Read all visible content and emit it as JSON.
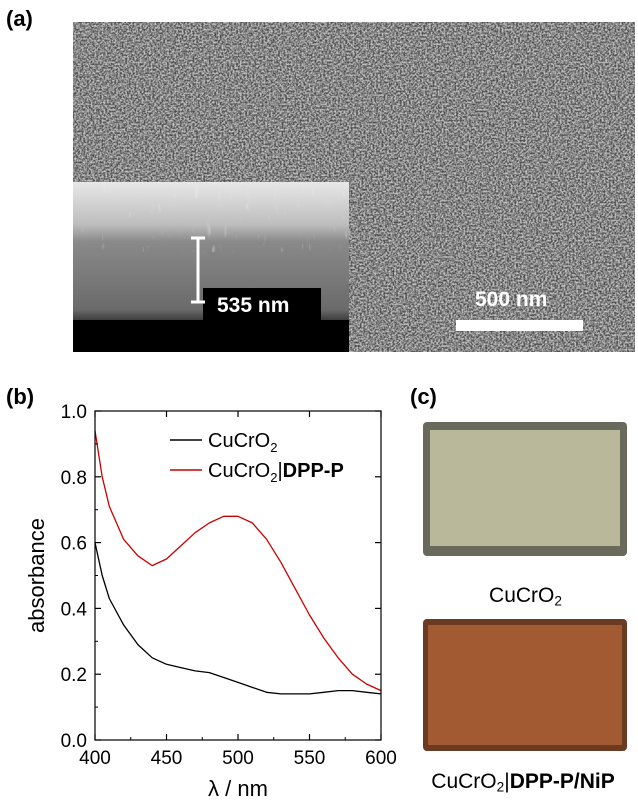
{
  "panels": {
    "a": "(a)",
    "b": "(b)",
    "c": "(c)"
  },
  "sem": {
    "scale_bar_label": "500 nm",
    "thickness_label": "535 nm"
  },
  "photos": [
    {
      "caption_main": "CuCrO",
      "caption_sub": "2",
      "caption_bold": "",
      "color": "#b9b89a"
    },
    {
      "caption_main": "CuCrO",
      "caption_sub": "2",
      "caption_sep": "|",
      "caption_bold": "DPP-P/NiP",
      "color": "#a25a32"
    }
  ],
  "chart_data": {
    "type": "line",
    "xlabel": "λ / nm",
    "ylabel": "absorbance",
    "xlim": [
      400,
      600
    ],
    "ylim": [
      0.0,
      1.0
    ],
    "xticks": [
      "400",
      "450",
      "500",
      "550",
      "600"
    ],
    "yticks": [
      "0.0",
      "0.2",
      "0.4",
      "0.6",
      "0.8",
      "1.0"
    ],
    "legend_position": "top-right",
    "series": [
      {
        "name": "CuCrO2",
        "legend_main": "CuCrO",
        "legend_sub": "2",
        "legend_sep": "",
        "legend_bold": "",
        "color": "#000000",
        "x": [
          400,
          405,
          410,
          420,
          430,
          440,
          450,
          460,
          470,
          480,
          490,
          500,
          510,
          520,
          530,
          540,
          550,
          560,
          570,
          580,
          590,
          600
        ],
        "y": [
          0.6,
          0.5,
          0.43,
          0.35,
          0.29,
          0.25,
          0.23,
          0.22,
          0.21,
          0.205,
          0.19,
          0.175,
          0.16,
          0.145,
          0.14,
          0.14,
          0.14,
          0.145,
          0.15,
          0.15,
          0.145,
          0.14
        ]
      },
      {
        "name": "CuCrO2|DPP-P",
        "legend_main": "CuCrO",
        "legend_sub": "2",
        "legend_sep": "|",
        "legend_bold": "DPP-P",
        "color": "#cc0000",
        "x": [
          400,
          405,
          410,
          420,
          430,
          440,
          450,
          460,
          470,
          480,
          490,
          500,
          510,
          520,
          530,
          540,
          550,
          560,
          570,
          580,
          590,
          600
        ],
        "y": [
          0.94,
          0.8,
          0.71,
          0.61,
          0.56,
          0.53,
          0.55,
          0.59,
          0.63,
          0.66,
          0.68,
          0.68,
          0.66,
          0.61,
          0.54,
          0.46,
          0.38,
          0.31,
          0.25,
          0.2,
          0.17,
          0.15
        ]
      }
    ]
  }
}
